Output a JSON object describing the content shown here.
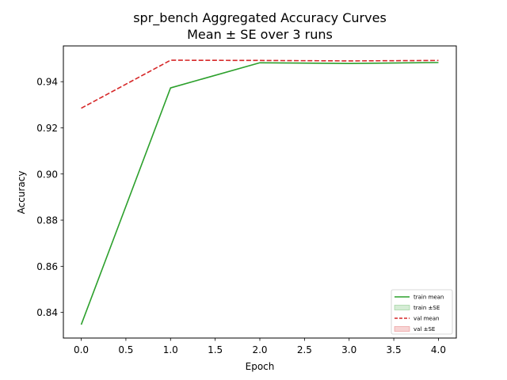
{
  "chart_data": {
    "type": "line",
    "title": "spr_bench Aggregated Accuracy Curves",
    "subtitle": "Mean ± SE over 3 runs",
    "xlabel": "Epoch",
    "ylabel": "Accuracy",
    "x": [
      0,
      1,
      2,
      3,
      4
    ],
    "xlim": [
      -0.2,
      4.2
    ],
    "ylim": [
      0.8289,
      0.9555
    ],
    "xticks": [
      "0.0",
      "0.5",
      "1.0",
      "1.5",
      "2.0",
      "2.5",
      "3.0",
      "3.5",
      "4.0"
    ],
    "xtick_values": [
      0,
      0.5,
      1,
      1.5,
      2,
      2.5,
      3,
      3.5,
      4
    ],
    "yticks": [
      "0.84",
      "0.86",
      "0.88",
      "0.90",
      "0.92",
      "0.94"
    ],
    "ytick_values": [
      0.84,
      0.86,
      0.88,
      0.9,
      0.92,
      0.94
    ],
    "grid": false,
    "legend_position": "bottom-right",
    "series": [
      {
        "name": "train mean",
        "values": [
          0.8347,
          0.9373,
          0.9482,
          0.9479,
          0.9483
        ],
        "color": "#2ca02c",
        "dash": "solid",
        "band_label": "train ±SE",
        "band_color": "#2ca02c"
      },
      {
        "name": "val mean",
        "values": [
          0.9285,
          0.9493,
          0.9492,
          0.949,
          0.9492
        ],
        "color": "#d62728",
        "dash": "dashed",
        "band_label": "val ±SE",
        "band_color": "#d62728"
      }
    ]
  }
}
